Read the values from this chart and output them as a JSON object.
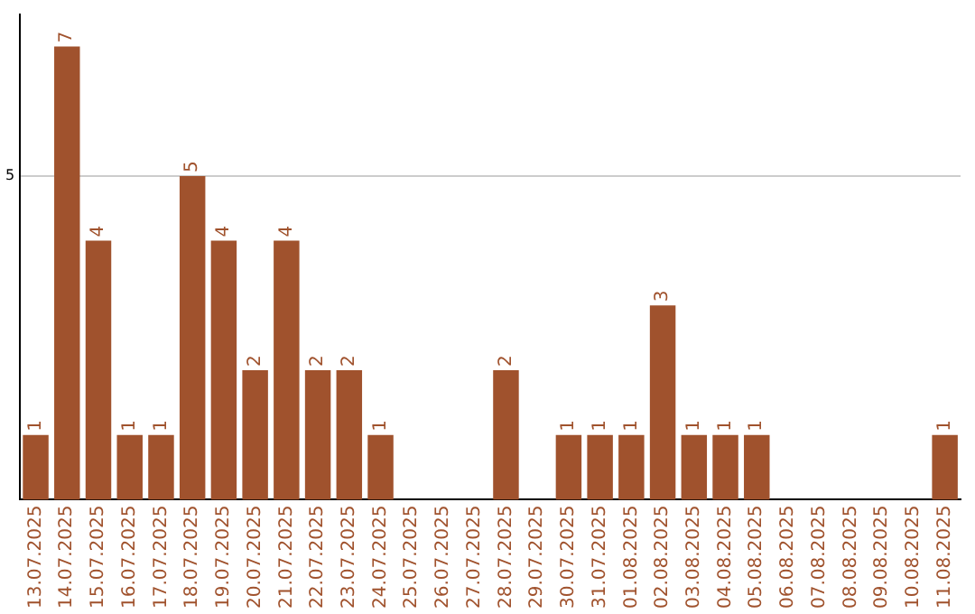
{
  "chart_data": {
    "type": "bar",
    "categories": [
      "13.07.2025",
      "14.07.2025",
      "15.07.2025",
      "16.07.2025",
      "17.07.2025",
      "18.07.2025",
      "19.07.2025",
      "20.07.2025",
      "21.07.2025",
      "22.07.2025",
      "23.07.2025",
      "24.07.2025",
      "25.07.2025",
      "26.07.2025",
      "27.07.2025",
      "28.07.2025",
      "29.07.2025",
      "30.07.2025",
      "31.07.2025",
      "01.08.2025",
      "02.08.2025",
      "03.08.2025",
      "04.08.2025",
      "05.08.2025",
      "06.08.2025",
      "07.08.2025",
      "08.08.2025",
      "09.08.2025",
      "10.08.2025",
      "11.08.2025"
    ],
    "values": [
      1,
      7,
      4,
      1,
      1,
      5,
      4,
      2,
      4,
      2,
      2,
      1,
      0,
      0,
      0,
      2,
      0,
      1,
      1,
      1,
      3,
      1,
      1,
      1,
      0,
      0,
      0,
      0,
      0,
      1
    ],
    "value_labels": [
      "1",
      "7",
      "4",
      "1",
      "1",
      "5",
      "4",
      "2",
      "4",
      "2",
      "2",
      "1",
      null,
      null,
      null,
      "2",
      null,
      "1",
      "1",
      "1",
      "3",
      "1",
      "1",
      "1",
      null,
      null,
      null,
      null,
      null,
      "1"
    ],
    "color": "#a0522d",
    "ylim": [
      0,
      7.5
    ],
    "yticks": [
      5
    ],
    "grid": "y",
    "legend": false
  }
}
